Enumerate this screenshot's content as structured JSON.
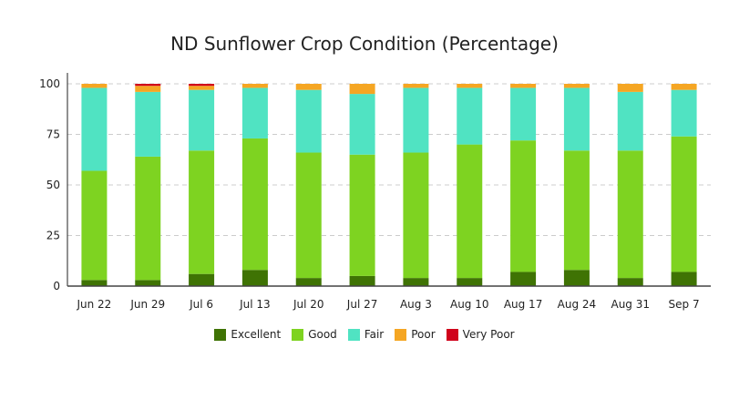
{
  "chart_data": {
    "type": "bar",
    "stacked": true,
    "title": "ND Sunflower Crop Condition (Percentage)",
    "xlabel": "",
    "ylabel": "",
    "ylim": [
      0,
      100
    ],
    "yticks": [
      0,
      25,
      50,
      75,
      100
    ],
    "grid": true,
    "legend_position": "bottom-center",
    "categories": [
      "Jun 22",
      "Jun 29",
      "Jul 6",
      "Jul 13",
      "Jul 20",
      "Jul 27",
      "Aug 3",
      "Aug 10",
      "Aug 17",
      "Aug 24",
      "Aug 31",
      "Sep 7"
    ],
    "series": [
      {
        "name": "Excellent",
        "color": "#3f7304",
        "values": [
          3,
          3,
          6,
          8,
          4,
          5,
          4,
          4,
          7,
          8,
          4,
          7
        ]
      },
      {
        "name": "Good",
        "color": "#7ed321",
        "values": [
          54,
          61,
          61,
          65,
          62,
          60,
          62,
          66,
          65,
          59,
          63,
          67
        ]
      },
      {
        "name": "Fair",
        "color": "#50e3c2",
        "values": [
          41,
          32,
          30,
          25,
          31,
          30,
          32,
          28,
          26,
          31,
          29,
          23
        ]
      },
      {
        "name": "Poor",
        "color": "#f5a623",
        "values": [
          2,
          3,
          2,
          2,
          3,
          5,
          2,
          2,
          2,
          2,
          4,
          3
        ]
      },
      {
        "name": "Very Poor",
        "color": "#d0021b",
        "values": [
          0,
          1,
          1,
          0,
          0,
          0,
          0,
          0,
          0,
          0,
          0,
          0
        ]
      }
    ]
  }
}
